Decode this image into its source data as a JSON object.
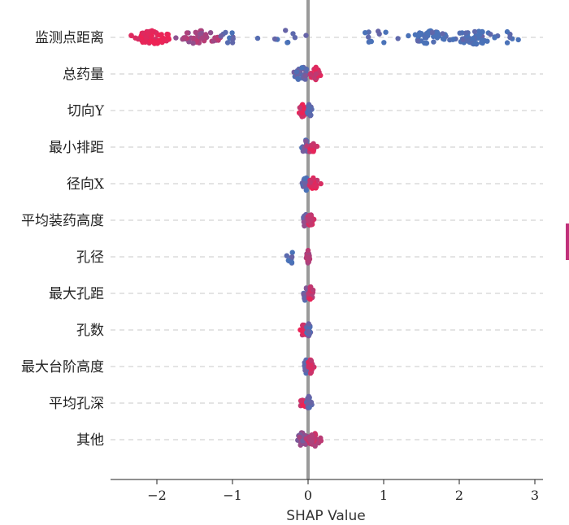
{
  "chart_data": {
    "type": "scatter",
    "subtype": "shap-beeswarm",
    "title": "",
    "xlabel": "SHAP Value",
    "ylabel": "",
    "xlim": [
      -2.5,
      3.0
    ],
    "xticks": [
      -2,
      -1,
      0,
      1,
      2,
      3
    ],
    "xtick_labels": [
      "−2",
      "−1",
      "0",
      "1",
      "2",
      "3"
    ],
    "grid": "horizontal dashed",
    "colors": {
      "high": "#ee2255",
      "low": "#4a72b8",
      "zero_line": "#9a9a9a"
    },
    "features": [
      {
        "name": "监测点距离",
        "min": -2.35,
        "max": 2.8,
        "clusters": [
          [
            -2.05,
            0.25,
            70,
            0.0
          ],
          [
            -1.45,
            0.28,
            45,
            0.45
          ],
          [
            -1.05,
            0.12,
            12,
            0.95
          ],
          [
            -0.3,
            0.25,
            10,
            1.0
          ],
          [
            0.9,
            0.3,
            10,
            1.0
          ],
          [
            1.6,
            0.3,
            45,
            1.0
          ],
          [
            2.2,
            0.3,
            50,
            1.0
          ],
          [
            2.65,
            0.12,
            6,
            1.0
          ]
        ]
      },
      {
        "name": "总药量",
        "min": -0.3,
        "max": 0.25,
        "clusters": [
          [
            -0.08,
            0.12,
            30,
            0.85
          ],
          [
            0.1,
            0.08,
            25,
            0.15
          ]
        ]
      },
      {
        "name": "切向Y",
        "min": -0.15,
        "max": 0.05,
        "clusters": [
          [
            -0.07,
            0.05,
            20,
            0.1
          ],
          [
            0.02,
            0.03,
            25,
            0.9
          ]
        ]
      },
      {
        "name": "最小排距",
        "min": -0.1,
        "max": 0.15,
        "clusters": [
          [
            -0.03,
            0.05,
            15,
            0.8
          ],
          [
            0.05,
            0.05,
            25,
            0.15
          ]
        ]
      },
      {
        "name": "径向X",
        "min": -0.1,
        "max": 0.2,
        "clusters": [
          [
            -0.03,
            0.04,
            25,
            0.9
          ],
          [
            0.08,
            0.06,
            20,
            0.1
          ]
        ]
      },
      {
        "name": "平均装药高度",
        "min": -0.1,
        "max": 0.1,
        "clusters": [
          [
            -0.04,
            0.04,
            15,
            0.7
          ],
          [
            0.03,
            0.04,
            25,
            0.15
          ]
        ]
      },
      {
        "name": "孔径",
        "min": -0.3,
        "max": 0.05,
        "clusters": [
          [
            -0.22,
            0.05,
            10,
            0.95
          ],
          [
            0.0,
            0.02,
            25,
            0.3
          ]
        ]
      },
      {
        "name": "最大孔距",
        "min": -0.1,
        "max": 0.1,
        "clusters": [
          [
            -0.04,
            0.04,
            15,
            0.8
          ],
          [
            0.03,
            0.04,
            25,
            0.2
          ]
        ]
      },
      {
        "name": "孔数",
        "min": -0.15,
        "max": 0.05,
        "clusters": [
          [
            -0.06,
            0.04,
            15,
            0.15
          ],
          [
            0.01,
            0.03,
            25,
            0.85
          ]
        ]
      },
      {
        "name": "最大台阶高度",
        "min": -0.08,
        "max": 0.08,
        "clusters": [
          [
            -0.02,
            0.04,
            20,
            0.8
          ],
          [
            0.03,
            0.04,
            20,
            0.2
          ]
        ]
      },
      {
        "name": "平均孔深",
        "min": -0.15,
        "max": 0.05,
        "clusters": [
          [
            -0.06,
            0.04,
            15,
            0.1
          ],
          [
            0.01,
            0.03,
            25,
            0.8
          ]
        ]
      },
      {
        "name": "其他",
        "min": -0.25,
        "max": 0.25,
        "clusters": [
          [
            -0.08,
            0.08,
            30,
            0.6
          ],
          [
            0.08,
            0.09,
            35,
            0.3
          ]
        ]
      }
    ]
  }
}
